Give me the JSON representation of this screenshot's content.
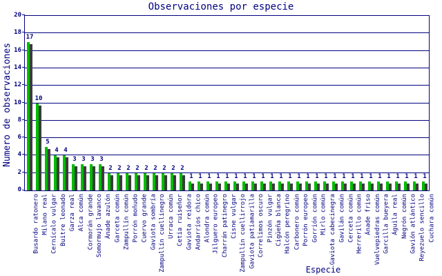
{
  "colors": {
    "text": "#000080",
    "axis": "#000080",
    "grid": "#000080",
    "bar": "#00bc00",
    "bar_shadow": "#3c3c3c",
    "background": "#ffffff"
  },
  "chart_data": {
    "type": "bar",
    "title": "Observaciones por especie",
    "xlabel": "Especie",
    "ylabel": "Numero de observaciones",
    "ylim": [
      0,
      20
    ],
    "ytick_step": 2,
    "y_ticks": [
      0,
      2,
      4,
      6,
      8,
      10,
      12,
      14,
      16,
      18,
      20
    ],
    "grid": true,
    "legend": "none",
    "bar_labels_shown": true,
    "categories": [
      "Busardo ratonero",
      "Milano real",
      "Cernícalo vulgar",
      "Buitre leonado",
      "Garza real",
      "Alca común",
      "Cormorán grande",
      "Somormujo lavanco",
      "Ánade azulón",
      "Garceta común",
      "Zampullín común",
      "Porrón moñudo",
      "Cuervo grande",
      "Gaviota sombría",
      "Zampullín cuellinegro",
      "Urraca común",
      "Cetia ruiseñor",
      "Gaviota reidora",
      "Andarríos chico",
      "Alondra común",
      "Jilguero europeo",
      "Charrán patinegro",
      "Cisne vulgar",
      "Zampullín cuellirrojo",
      "Gaviota patiamarilla",
      "Correlimos oscuro",
      "Pinzón vulgar",
      "Cigüeña blanca",
      "Halcón peregrino",
      "Carbonero común",
      "Porrón europeo",
      "Gorrión común",
      "Mirlo común",
      "Gaviota cabecinegra",
      "Gavilán común",
      "Cerceta común",
      "Herrerillo común",
      "Ánade friso",
      "Vuelvepiedras común",
      "Garcilla bueyera",
      "Águila real",
      "Negrón común",
      "Gavión atlántico",
      "Reyezuelo sencillo",
      "Cuchara común"
    ],
    "values": [
      17,
      10,
      5,
      4,
      4,
      3,
      3,
      3,
      3,
      2,
      2,
      2,
      2,
      2,
      2,
      2,
      2,
      2,
      1,
      1,
      1,
      1,
      1,
      1,
      1,
      1,
      1,
      1,
      1,
      1,
      1,
      1,
      1,
      1,
      1,
      1,
      1,
      1,
      1,
      1,
      1,
      1,
      1,
      1,
      1
    ]
  }
}
